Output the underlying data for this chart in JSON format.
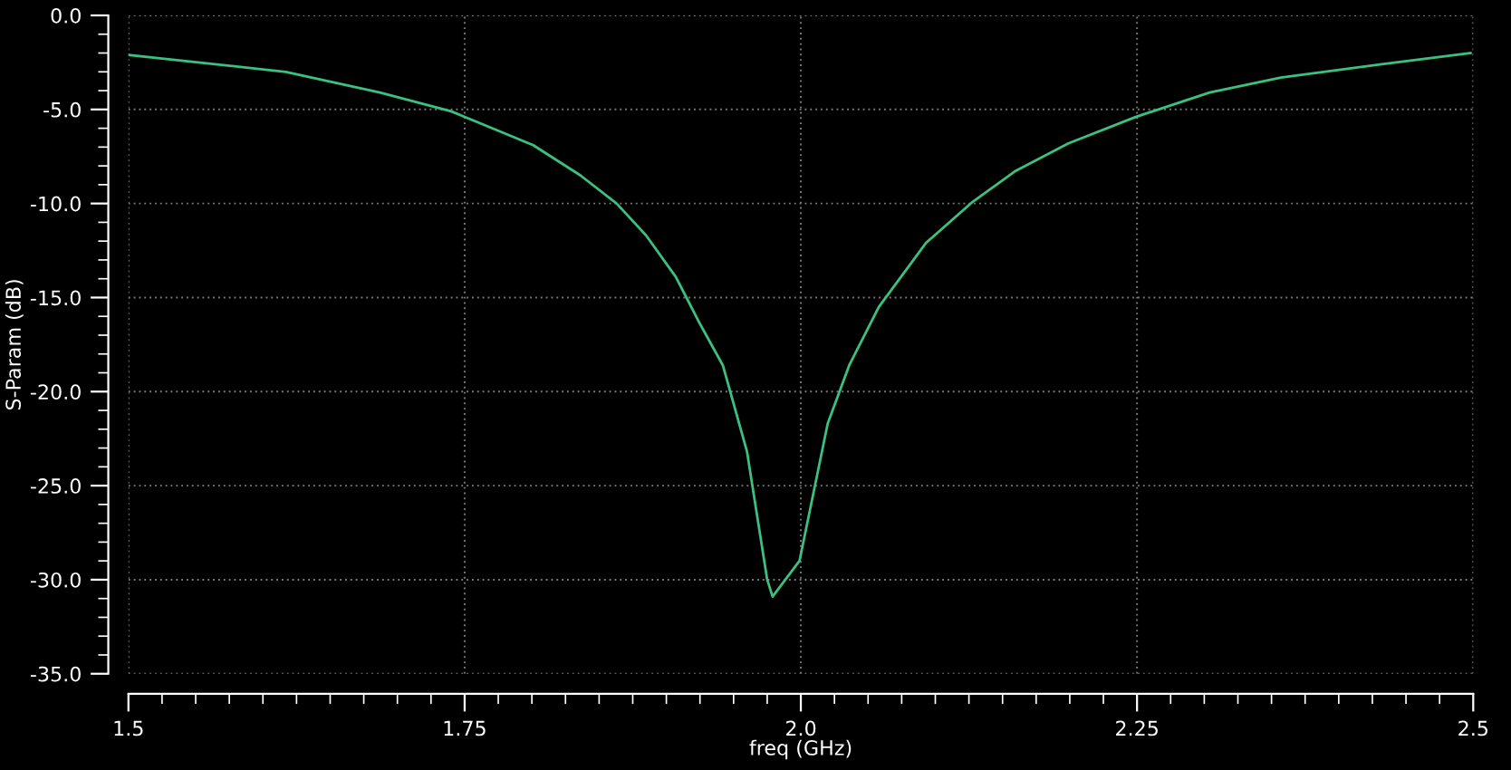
{
  "chart_data": {
    "type": "line",
    "xlabel": "freq (GHz)",
    "ylabel": "S-Param (dB)",
    "x": [
      1.5,
      1.617,
      1.687,
      1.74,
      1.801,
      1.836,
      1.863,
      1.885,
      1.907,
      1.925,
      1.942,
      1.96,
      1.975,
      1.979,
      1.999,
      2.02,
      2.036,
      2.058,
      2.093,
      2.128,
      2.159,
      2.199,
      2.249,
      2.304,
      2.357,
      2.432,
      2.498
    ],
    "series": [
      {
        "color": "#3cc080",
        "values": [
          -2.1,
          -3.0,
          -4.1,
          -5.1,
          -6.9,
          -8.5,
          -10.0,
          -11.7,
          -13.9,
          -16.4,
          -18.6,
          -23.2,
          -30.0,
          -30.9,
          -29.0,
          -21.7,
          -18.6,
          -15.5,
          -12.1,
          -9.9,
          -8.3,
          -6.8,
          -5.4,
          -4.1,
          -3.3,
          -2.6,
          -2.0
        ]
      }
    ],
    "xlim": [
      1.5,
      2.5
    ],
    "ylim": [
      -35,
      0
    ],
    "xticks": [
      1.5,
      1.75,
      {
        "value": 2,
        "label": "2.0"
      },
      2.25,
      2.5
    ],
    "yticks": [
      {
        "value": 0,
        "label": "0.0"
      },
      {
        "value": -5,
        "label": "-5.0"
      },
      {
        "value": -10,
        "label": "-10.0"
      },
      {
        "value": -15,
        "label": "-15.0"
      },
      {
        "value": -20,
        "label": "-20.0"
      },
      {
        "value": -25,
        "label": "-25.0"
      },
      {
        "value": -30,
        "label": "-30.0"
      },
      {
        "value": -35,
        "label": "-35.0"
      }
    ],
    "grid": true,
    "marker": "none",
    "line_style": "solid"
  }
}
